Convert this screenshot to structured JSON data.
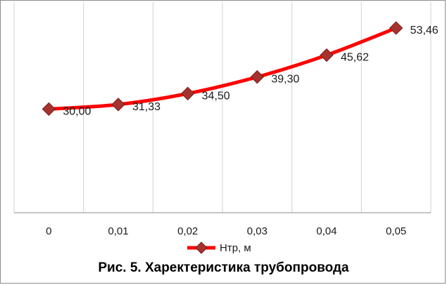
{
  "caption": "Рис. 5. Харектеристика трубопровода",
  "chart_data": {
    "type": "line",
    "categories": [
      "0",
      "0,01",
      "0,02",
      "0,03",
      "0,04",
      "0,05"
    ],
    "series": [
      {
        "name": "Нтр, м",
        "values": [
          30.0,
          31.33,
          34.5,
          39.3,
          45.62,
          53.46
        ],
        "labels": [
          "30,00",
          "31,33",
          "34,50",
          "39,30",
          "45,62",
          "53,46"
        ]
      }
    ],
    "ylim": [
      0,
      60
    ],
    "grid": "vertical",
    "legend": "bottom",
    "colors": {
      "line": "#ff0000",
      "marker": "#a5322e",
      "grid": "#d0d0d0",
      "axis": "#8c8c8c"
    }
  }
}
